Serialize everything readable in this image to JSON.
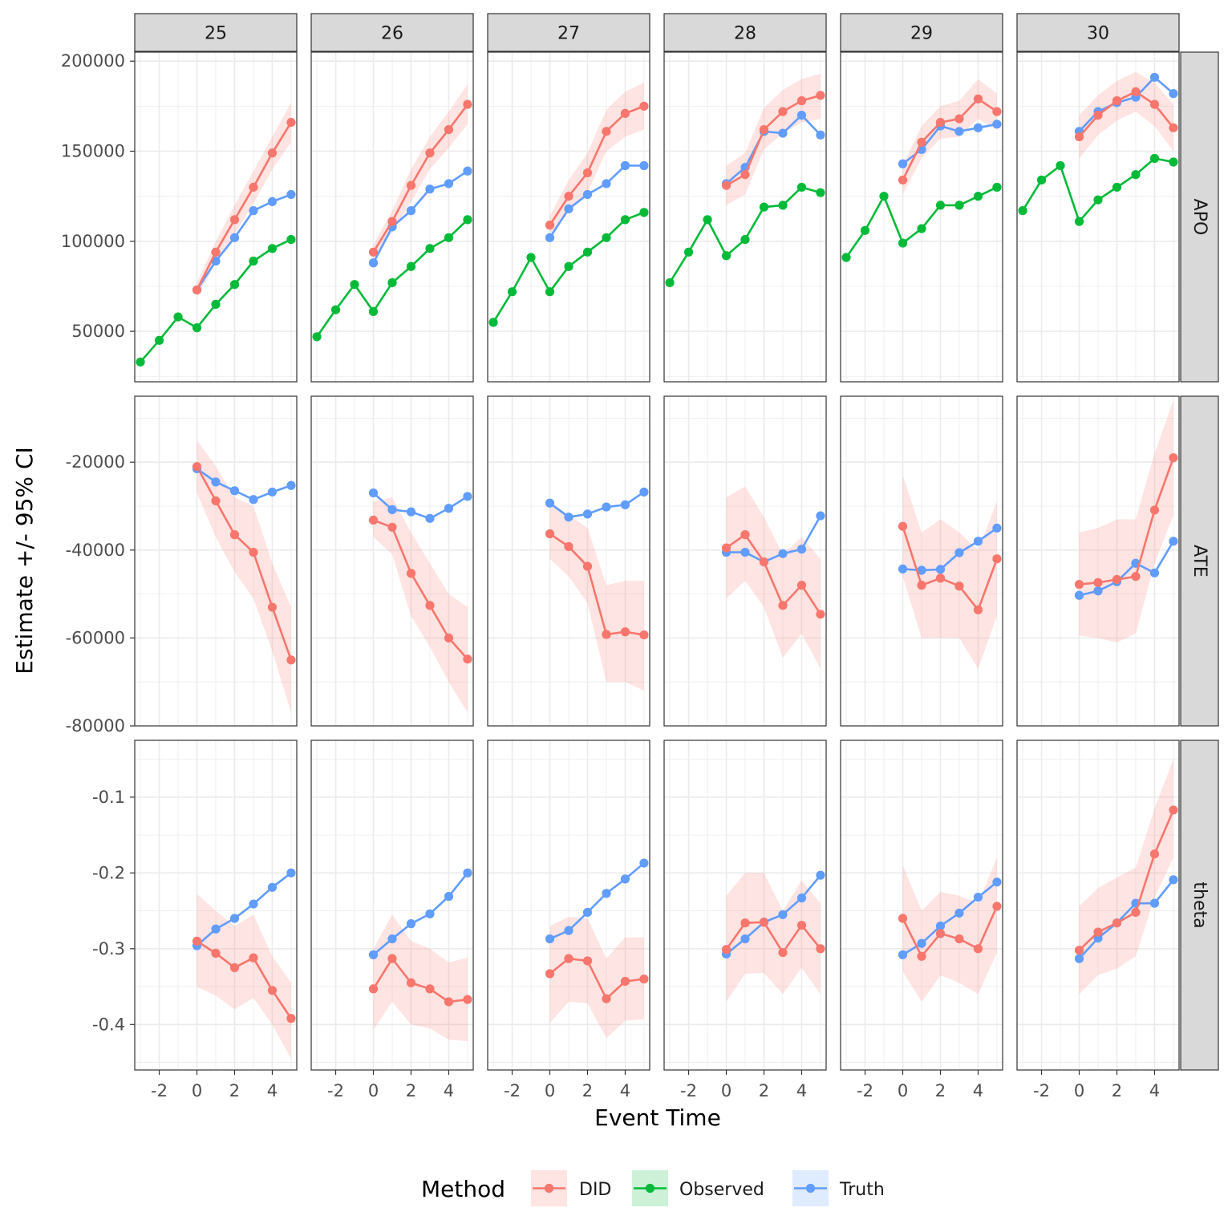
{
  "chart_data": {
    "type": "line",
    "xlabel": "Event Time",
    "ylabel": "Estimate +/- 95% CI",
    "column_facets": [
      "25",
      "26",
      "27",
      "28",
      "29",
      "30"
    ],
    "row_facets": [
      "APO",
      "ATE",
      "theta"
    ],
    "x_ticks": [
      -2,
      0,
      2,
      4
    ],
    "xlim": [
      -3.3,
      5.3
    ],
    "rows": {
      "APO": {
        "ylim": [
          22000,
          205000
        ],
        "ticks": [
          50000,
          100000,
          150000,
          200000
        ],
        "tick_labels": [
          "50000",
          "100000",
          "150000",
          "200000"
        ]
      },
      "ATE": {
        "ylim": [
          -80000,
          -5000
        ],
        "ticks": [
          -80000,
          -60000,
          -40000,
          -20000
        ],
        "tick_labels": [
          "-80000",
          "-60000",
          "-40000",
          "-20000"
        ]
      },
      "theta": {
        "ylim": [
          -0.46,
          -0.025
        ],
        "ticks": [
          -0.4,
          -0.3,
          -0.2,
          -0.1
        ],
        "tick_labels": [
          "-0.4",
          "-0.3",
          "-0.2",
          "-0.1"
        ]
      }
    },
    "legend": {
      "title": "Method",
      "entries": [
        {
          "name": "DID",
          "color": "#F8766D"
        },
        {
          "name": "Observed",
          "color": "#00BA38"
        },
        {
          "name": "Truth",
          "color": "#619CFF"
        }
      ],
      "position": "bottom"
    },
    "grid": true,
    "x": [
      -3,
      -2,
      -1,
      0,
      1,
      2,
      3,
      4,
      5
    ],
    "panels": {
      "25": {
        "APO": {
          "Observed": [
            33000,
            45000,
            58000,
            52000,
            65000,
            76000,
            89000,
            96000,
            101000
          ],
          "Truth": [
            null,
            null,
            null,
            73000,
            89000,
            102000,
            117000,
            122000,
            126000
          ],
          "DID": [
            null,
            null,
            null,
            73000,
            94000,
            112000,
            130000,
            149000,
            166000
          ],
          "DID_lo": [
            null,
            null,
            null,
            69000,
            88000,
            104000,
            121000,
            140000,
            155000
          ],
          "DID_hi": [
            null,
            null,
            null,
            77000,
            100000,
            120000,
            139000,
            158000,
            177000
          ]
        },
        "ATE": {
          "Truth": [
            null,
            null,
            null,
            -21500,
            -24500,
            -26500,
            -28500,
            -26800,
            -25300
          ],
          "DID": [
            null,
            null,
            null,
            -21000,
            -28800,
            -36500,
            -40500,
            -53000,
            -65000
          ],
          "DID_lo": [
            null,
            null,
            null,
            -27000,
            -37000,
            -45000,
            -51000,
            -63000,
            -77000
          ],
          "DID_hi": [
            null,
            null,
            null,
            -15000,
            -21000,
            -28000,
            -30000,
            -43000,
            -53000
          ]
        },
        "theta": {
          "Truth": [
            null,
            null,
            null,
            -0.296,
            -0.274,
            -0.26,
            -0.241,
            -0.219,
            -0.2
          ],
          "DID": [
            null,
            null,
            null,
            -0.29,
            -0.306,
            -0.325,
            -0.312,
            -0.355,
            -0.392
          ],
          "DID_lo": [
            null,
            null,
            null,
            -0.35,
            -0.362,
            -0.38,
            -0.365,
            -0.4,
            -0.445
          ],
          "DID_hi": [
            null,
            null,
            null,
            -0.228,
            -0.25,
            -0.27,
            -0.255,
            -0.31,
            -0.345
          ]
        }
      },
      "26": {
        "APO": {
          "Observed": [
            47000,
            62000,
            76000,
            61000,
            77000,
            86000,
            96000,
            102000,
            112000
          ],
          "Truth": [
            null,
            null,
            null,
            88000,
            108000,
            117000,
            129000,
            132000,
            139000
          ],
          "DID": [
            null,
            null,
            null,
            94000,
            111000,
            131000,
            149000,
            162000,
            176000
          ],
          "DID_lo": [
            null,
            null,
            null,
            90000,
            105000,
            122000,
            140000,
            152000,
            165000
          ],
          "DID_hi": [
            null,
            null,
            null,
            98000,
            117000,
            140000,
            158000,
            172000,
            187000
          ]
        },
        "ATE": {
          "Truth": [
            null,
            null,
            null,
            -27000,
            -30800,
            -31300,
            -32800,
            -30500,
            -27800
          ],
          "DID": [
            null,
            null,
            null,
            -33200,
            -34800,
            -45300,
            -52600,
            -60000,
            -64800
          ],
          "DID_lo": [
            null,
            null,
            null,
            -37000,
            -41000,
            -55000,
            -62000,
            -70000,
            -77000
          ],
          "DID_hi": [
            null,
            null,
            null,
            -29000,
            -28000,
            -36000,
            -43000,
            -50000,
            -53000
          ]
        },
        "theta": {
          "Truth": [
            null,
            null,
            null,
            -0.308,
            -0.287,
            -0.267,
            -0.254,
            -0.231,
            -0.2
          ],
          "DID": [
            null,
            null,
            null,
            -0.353,
            -0.313,
            -0.345,
            -0.353,
            -0.37,
            -0.367
          ],
          "DID_lo": [
            null,
            null,
            null,
            -0.407,
            -0.37,
            -0.4,
            -0.405,
            -0.42,
            -0.422
          ],
          "DID_hi": [
            null,
            null,
            null,
            -0.3,
            -0.255,
            -0.29,
            -0.3,
            -0.318,
            -0.312
          ]
        }
      },
      "27": {
        "APO": {
          "Observed": [
            55000,
            72000,
            91000,
            72000,
            86000,
            94000,
            102000,
            112000,
            116000
          ],
          "Truth": [
            null,
            null,
            null,
            102000,
            118000,
            126000,
            132000,
            142000,
            142000
          ],
          "DID": [
            null,
            null,
            null,
            109000,
            125000,
            138000,
            161000,
            171000,
            175000
          ],
          "DID_lo": [
            null,
            null,
            null,
            104000,
            116000,
            127000,
            150000,
            158000,
            162000
          ],
          "DID_hi": [
            null,
            null,
            null,
            114000,
            134000,
            149000,
            173000,
            183000,
            188000
          ]
        },
        "ATE": {
          "Truth": [
            null,
            null,
            null,
            -29300,
            -32500,
            -31800,
            -30200,
            -29700,
            -26800
          ],
          "DID": [
            null,
            null,
            null,
            -36300,
            -39200,
            -43700,
            -59200,
            -58600,
            -59300
          ],
          "DID_lo": [
            null,
            null,
            null,
            -42000,
            -46000,
            -52000,
            -70000,
            -70000,
            -72000
          ],
          "DID_hi": [
            null,
            null,
            null,
            -29000,
            -32000,
            -35000,
            -48000,
            -47000,
            -47000
          ]
        },
        "theta": {
          "Truth": [
            null,
            null,
            null,
            -0.287,
            -0.276,
            -0.252,
            -0.227,
            -0.208,
            -0.187
          ],
          "DID": [
            null,
            null,
            null,
            -0.333,
            -0.313,
            -0.316,
            -0.366,
            -0.343,
            -0.34
          ],
          "DID_lo": [
            null,
            null,
            null,
            -0.398,
            -0.37,
            -0.372,
            -0.418,
            -0.395,
            -0.393
          ],
          "DID_hi": [
            null,
            null,
            null,
            -0.27,
            -0.258,
            -0.26,
            -0.313,
            -0.285,
            -0.285
          ]
        }
      },
      "28": {
        "APO": {
          "Observed": [
            77000,
            94000,
            112000,
            92000,
            101000,
            119000,
            120000,
            130000,
            127000
          ],
          "Truth": [
            null,
            null,
            null,
            132000,
            141000,
            161000,
            160000,
            170000,
            159000
          ],
          "DID": [
            null,
            null,
            null,
            131000,
            137000,
            162000,
            172000,
            178000,
            181000
          ],
          "DID_lo": [
            null,
            null,
            null,
            120000,
            126000,
            151000,
            160000,
            166000,
            168000
          ],
          "DID_hi": [
            null,
            null,
            null,
            142000,
            149000,
            174000,
            184000,
            190000,
            193000
          ]
        },
        "ATE": {
          "Truth": [
            null,
            null,
            null,
            -40500,
            -40500,
            -42700,
            -40800,
            -39800,
            -32200
          ],
          "DID": [
            null,
            null,
            null,
            -39500,
            -36500,
            -42700,
            -52600,
            -48000,
            -54600
          ],
          "DID_lo": [
            null,
            null,
            null,
            -51000,
            -47000,
            -53000,
            -64500,
            -59000,
            -67000
          ],
          "DID_hi": [
            null,
            null,
            null,
            -28000,
            -25500,
            -32500,
            -41000,
            -37000,
            -42000
          ]
        },
        "theta": {
          "Truth": [
            null,
            null,
            null,
            -0.307,
            -0.287,
            -0.265,
            -0.255,
            -0.233,
            -0.203
          ],
          "DID": [
            null,
            null,
            null,
            -0.301,
            -0.266,
            -0.265,
            -0.305,
            -0.269,
            -0.3
          ],
          "DID_lo": [
            null,
            null,
            null,
            -0.37,
            -0.333,
            -0.332,
            -0.36,
            -0.325,
            -0.36
          ],
          "DID_hi": [
            null,
            null,
            null,
            -0.23,
            -0.2,
            -0.2,
            -0.25,
            -0.21,
            -0.24
          ]
        }
      },
      "29": {
        "APO": {
          "Observed": [
            91000,
            106000,
            125000,
            99000,
            107000,
            120000,
            120000,
            125000,
            130000
          ],
          "Truth": [
            null,
            null,
            null,
            143000,
            151000,
            164000,
            161000,
            163000,
            165000
          ],
          "DID": [
            null,
            null,
            null,
            134000,
            155000,
            166000,
            168000,
            179000,
            172000
          ],
          "DID_lo": [
            null,
            null,
            null,
            126000,
            146000,
            157000,
            158000,
            168000,
            162000
          ],
          "DID_hi": [
            null,
            null,
            null,
            142000,
            164000,
            175000,
            178000,
            190000,
            182000
          ]
        },
        "ATE": {
          "Truth": [
            null,
            null,
            null,
            -44300,
            -44600,
            -44400,
            -40600,
            -38000,
            -35000
          ],
          "DID": [
            null,
            null,
            null,
            -34600,
            -48000,
            -46400,
            -48200,
            -53600,
            -42000
          ],
          "DID_lo": [
            null,
            null,
            null,
            -46000,
            -60000,
            -60000,
            -60000,
            -67000,
            -55000
          ],
          "DID_hi": [
            null,
            null,
            null,
            -23000,
            -36000,
            -33000,
            -36000,
            -40000,
            -29000
          ]
        },
        "theta": {
          "Truth": [
            null,
            null,
            null,
            -0.308,
            -0.293,
            -0.27,
            -0.253,
            -0.232,
            -0.212
          ],
          "DID": [
            null,
            null,
            null,
            -0.26,
            -0.31,
            -0.28,
            -0.287,
            -0.3,
            -0.244
          ],
          "DID_lo": [
            null,
            null,
            null,
            -0.33,
            -0.37,
            -0.335,
            -0.345,
            -0.36,
            -0.305
          ],
          "DID_hi": [
            null,
            null,
            null,
            -0.19,
            -0.25,
            -0.225,
            -0.23,
            -0.24,
            -0.18
          ]
        }
      },
      "30": {
        "APO": {
          "Observed": [
            117000,
            134000,
            142000,
            111000,
            123000,
            130000,
            137000,
            146000,
            144000
          ],
          "Truth": [
            null,
            null,
            null,
            161000,
            172000,
            177000,
            180000,
            191000,
            182000
          ],
          "DID": [
            null,
            null,
            null,
            158000,
            170000,
            178000,
            183000,
            176000,
            163000
          ],
          "DID_lo": [
            null,
            null,
            null,
            146000,
            159000,
            167000,
            172000,
            164000,
            150000
          ],
          "DID_hi": [
            null,
            null,
            null,
            170000,
            181000,
            189000,
            194000,
            188000,
            176000
          ]
        },
        "ATE": {
          "Truth": [
            null,
            null,
            null,
            -50300,
            -49300,
            -47200,
            -43000,
            -45200,
            -38000
          ],
          "DID": [
            null,
            null,
            null,
            -47800,
            -47400,
            -46700,
            -46000,
            -30900,
            -19000
          ],
          "DID_lo": [
            null,
            null,
            null,
            -59500,
            -60000,
            -61000,
            -59000,
            -43000,
            -32000
          ],
          "DID_hi": [
            null,
            null,
            null,
            -36000,
            -35000,
            -33000,
            -33000,
            -18000,
            -6000
          ]
        },
        "theta": {
          "Truth": [
            null,
            null,
            null,
            -0.313,
            -0.286,
            -0.266,
            -0.24,
            -0.24,
            -0.209
          ],
          "DID": [
            null,
            null,
            null,
            -0.302,
            -0.278,
            -0.266,
            -0.252,
            -0.175,
            -0.117
          ],
          "DID_lo": [
            null,
            null,
            null,
            -0.36,
            -0.335,
            -0.326,
            -0.31,
            -0.232,
            -0.18
          ],
          "DID_hi": [
            null,
            null,
            null,
            -0.244,
            -0.22,
            -0.206,
            -0.193,
            -0.115,
            -0.05
          ]
        }
      }
    }
  }
}
